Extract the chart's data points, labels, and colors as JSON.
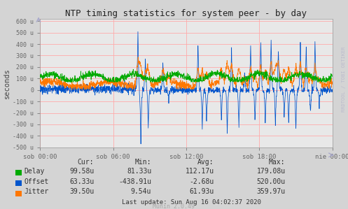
{
  "title": "NTP timing statistics for system peer - by day",
  "ylabel": "seconds",
  "background_color": "#d4d4d4",
  "plot_bg_color": "#e8e8e8",
  "grid_color": "#ffaaaa",
  "ylim": [
    -500,
    620
  ],
  "yticks": [
    -500,
    -400,
    -300,
    -200,
    -100,
    0,
    100,
    200,
    300,
    400,
    500,
    600
  ],
  "ytick_labels": [
    "-500 u",
    "-400 u",
    "-300 u",
    "-200 u",
    "-100 u",
    "0",
    "100 u",
    "200 u",
    "300 u",
    "400 u",
    "500 u",
    "600 u"
  ],
  "xtick_labels": [
    "sob 00:00",
    "sob 06:00",
    "sob 12:00",
    "sob 18:00",
    "nie 00:00"
  ],
  "delay_color": "#00aa00",
  "offset_color": "#0055cc",
  "jitter_color": "#ff7700",
  "rrdtool_label": "RRDTOOL / TOBI OETIKER",
  "stats": {
    "headers": [
      "Cur:",
      "Min:",
      "Avg:",
      "Max:"
    ],
    "rows": [
      [
        "Delay",
        "99.58u",
        "81.33u",
        "112.17u",
        "179.08u"
      ],
      [
        "Offset",
        "63.33u",
        "-438.91u",
        "-2.68u",
        "520.00u"
      ],
      [
        "Jitter",
        "39.50u",
        "9.54u",
        "61.93u",
        "359.97u"
      ]
    ]
  },
  "legend_colors": [
    "#00aa00",
    "#0055cc",
    "#ff7700"
  ],
  "last_update": "Last update: Sun Aug 16 04:02:37 2020",
  "munin_version": "Munin 2.0.49"
}
